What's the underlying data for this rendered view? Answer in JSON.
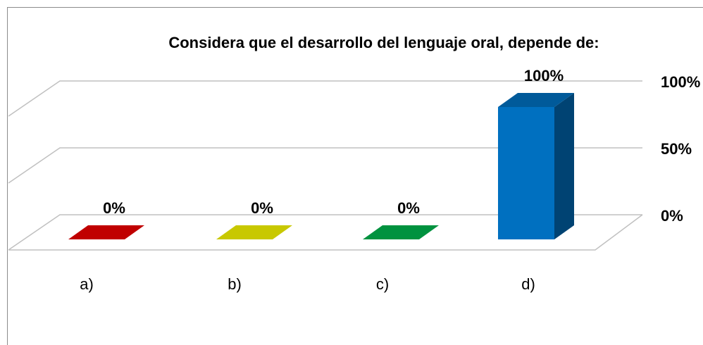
{
  "chart_data": {
    "type": "bar3d",
    "title": "Considera que el desarrollo del lenguaje oral, depende de:",
    "categories": [
      "a)",
      "b)",
      "c)",
      "d)"
    ],
    "values": [
      0,
      0,
      0,
      100
    ],
    "value_labels": [
      "0%",
      "0%",
      "0%",
      "100%"
    ],
    "colors": [
      "#c00000",
      "#c8c800",
      "#00923f",
      "#0070c0"
    ],
    "ylim": [
      0,
      100
    ],
    "yticks": [
      {
        "value": 0,
        "label": "0%"
      },
      {
        "value": 50,
        "label": "50%"
      },
      {
        "value": 100,
        "label": "100%"
      }
    ],
    "grid": true
  }
}
